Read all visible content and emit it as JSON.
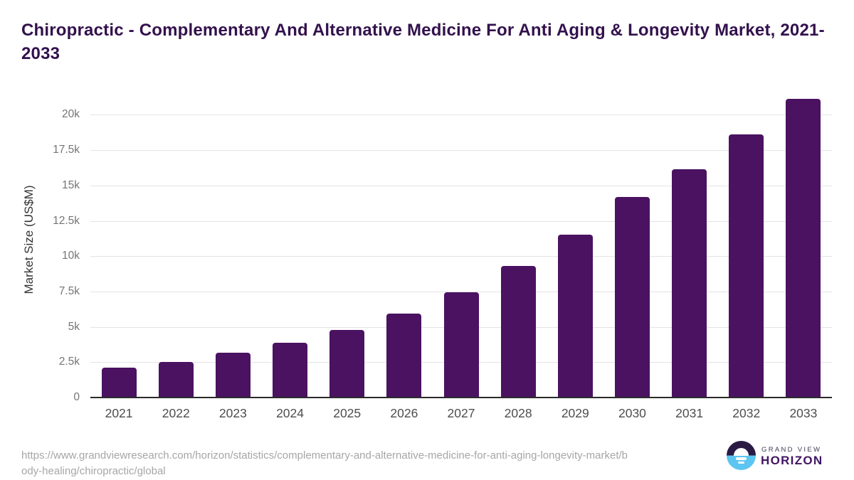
{
  "title": "Chiropractic - Complementary And Alternative Medicine For Anti Aging & Longevity Market, 2021-2033",
  "chart_data": {
    "type": "bar",
    "title": "Chiropractic - Complementary And Alternative Medicine For Anti Aging & Longevity Market, 2021-2033",
    "xlabel": "",
    "ylabel": "Market Size (US$M)",
    "categories": [
      "2021",
      "2022",
      "2023",
      "2024",
      "2025",
      "2026",
      "2027",
      "2028",
      "2029",
      "2030",
      "2031",
      "2032",
      "2033"
    ],
    "values": [
      2100,
      2500,
      3150,
      3850,
      4800,
      5950,
      7450,
      9300,
      11500,
      14200,
      16150,
      18600,
      21150
    ],
    "units": "US$M",
    "ylim": [
      0,
      20000
    ],
    "ytick_values": [
      0,
      2500,
      5000,
      7500,
      10000,
      12500,
      15000,
      17500,
      20000
    ],
    "ytick_labels": [
      "0",
      "2.5k",
      "5k",
      "7.5k",
      "10k",
      "12.5k",
      "15k",
      "17.5k",
      "20k"
    ],
    "grid": true,
    "legend": "none",
    "bar_color": "#4a1261",
    "gridline_color": "#e3e3e3",
    "axis_line_color": "#2b2b2b"
  },
  "footer": {
    "source_url_lines": [
      "https://www.grandviewresearch.com/horizon/statistics/complementary-and-alternative-medicine-for-anti-aging-longevity-market/b",
      "ody-healing/chiropractic/global"
    ]
  },
  "branding": {
    "name_top": "GRAND VIEW",
    "name_bottom": "HORIZON",
    "mark_top_color": "#2a1b45",
    "mark_bottom_color": "#5cc5f1"
  },
  "colors": {
    "title_text": "#33114d",
    "ytick_text": "#757575",
    "xtick_text": "#4d4d4d",
    "url_text": "#a6a6a6"
  }
}
